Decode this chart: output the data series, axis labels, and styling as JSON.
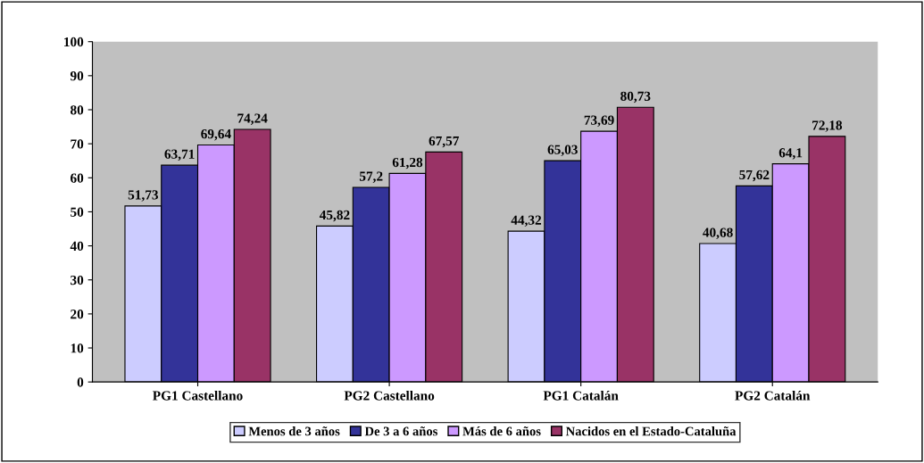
{
  "chart_data": {
    "type": "bar",
    "categories": [
      "PG1 Castellano",
      "PG2 Castellano",
      "PG1 Catalán",
      "PG2 Catalán"
    ],
    "series": [
      {
        "name": "Menos de 3 años",
        "color": "#ccccff",
        "values": [
          51.73,
          45.82,
          44.32,
          40.68
        ],
        "value_labels": [
          "51,73",
          "45,82",
          "44,32",
          "40,68"
        ]
      },
      {
        "name": "De 3 a 6 años",
        "color": "#333399",
        "values": [
          63.71,
          57.2,
          65.03,
          57.62
        ],
        "value_labels": [
          "63,71",
          "57,2",
          "65,03",
          "57,62"
        ]
      },
      {
        "name": "Más de 6 años",
        "color": "#cc99ff",
        "values": [
          69.64,
          61.28,
          73.69,
          64.1
        ],
        "value_labels": [
          "69,64",
          "61,28",
          "73,69",
          "64,1"
        ]
      },
      {
        "name": "Nacidos en el Estado-Cataluña",
        "color": "#993366",
        "values": [
          74.24,
          67.57,
          80.73,
          72.18
        ],
        "value_labels": [
          "74,24",
          "67,57",
          "80,73",
          "72,18"
        ]
      }
    ],
    "ylim": [
      0,
      100
    ],
    "yticks": [
      0,
      10,
      20,
      30,
      40,
      50,
      60,
      70,
      80,
      90,
      100
    ],
    "grid": false,
    "legend": "bottom"
  }
}
